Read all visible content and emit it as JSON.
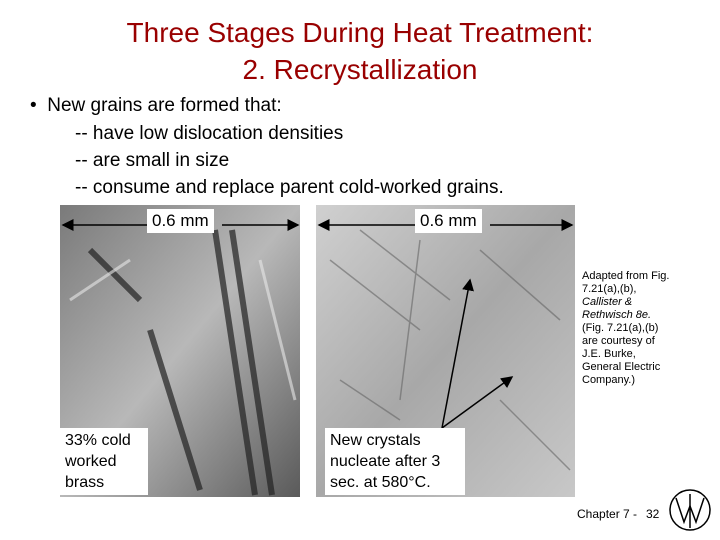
{
  "title": [
    "Three Stages During Heat Treatment:",
    "2. Recrystallization"
  ],
  "bullet": {
    "text": "New grains are formed that:",
    "items": [
      "-- have low dislocation densities",
      "-- are small in size",
      "-- consume and replace parent cold-worked grains."
    ]
  },
  "images": [
    {
      "scale": "0.6 mm",
      "label": "33% cold worked brass"
    },
    {
      "scale": "0.6 mm",
      "label": "New crystals nucleate after 3 sec. at 580°C."
    }
  ],
  "caption": [
    "Adapted from Fig.",
    "7.21(a),(b),",
    "Callister &",
    "Rethwisch 8e.",
    "(Fig. 7.21(a),(b)",
    "are courtesy of",
    "J.E. Burke,",
    "General Electric",
    "Company.)"
  ],
  "footer": {
    "chapter": "Chapter 7 -",
    "page": "32"
  }
}
